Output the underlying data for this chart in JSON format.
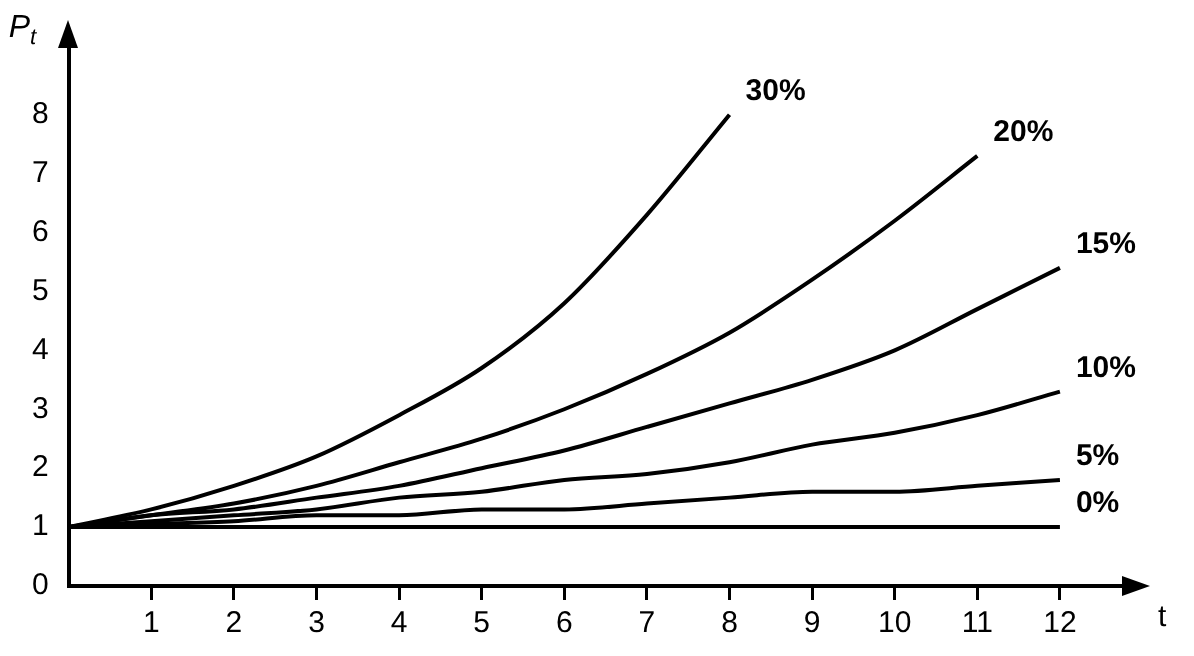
{
  "chart_data": {
    "type": "line",
    "xlabel": "t",
    "ylabel": "P$_{t}$",
    "xlim": [
      0,
      12.8
    ],
    "ylim": [
      0,
      9.2
    ],
    "xticks": [
      1,
      2,
      3,
      4,
      5,
      6,
      7,
      8,
      9,
      10,
      11,
      12
    ],
    "yticks": [
      0,
      1,
      2,
      3,
      4,
      5,
      6,
      7,
      8
    ],
    "grid": false,
    "legend": false,
    "line_style": "solid",
    "series": [
      {
        "name": "30%",
        "color": "#000000",
        "x": [
          0,
          1,
          2,
          3,
          4,
          5,
          6,
          7,
          8
        ],
        "values": [
          1,
          1.3,
          1.7,
          2.2,
          2.9,
          3.7,
          4.8,
          6.3,
          8.0
        ]
      },
      {
        "name": "20%",
        "color": "#000000",
        "x": [
          0,
          1,
          2,
          3,
          4,
          5,
          6,
          7,
          8,
          9,
          10,
          11
        ],
        "values": [
          1,
          1.2,
          1.4,
          1.7,
          2.1,
          2.5,
          3.0,
          3.6,
          4.3,
          5.2,
          6.2,
          7.3
        ]
      },
      {
        "name": "15%",
        "color": "#000000",
        "x": [
          0,
          1,
          2,
          3,
          4,
          5,
          6,
          7,
          8,
          9,
          10,
          11,
          12
        ],
        "values": [
          1,
          1.2,
          1.3,
          1.5,
          1.7,
          2.0,
          2.3,
          2.7,
          3.1,
          3.5,
          4.0,
          4.7,
          5.4
        ]
      },
      {
        "name": "10%",
        "color": "#000000",
        "x": [
          0,
          1,
          2,
          3,
          4,
          5,
          6,
          7,
          8,
          9,
          10,
          11,
          12
        ],
        "values": [
          1,
          1.1,
          1.2,
          1.3,
          1.5,
          1.6,
          1.8,
          1.9,
          2.1,
          2.4,
          2.6,
          2.9,
          3.3
        ]
      },
      {
        "name": "5%",
        "color": "#000000",
        "x": [
          0,
          1,
          2,
          3,
          4,
          5,
          6,
          7,
          8,
          9,
          10,
          11,
          12
        ],
        "values": [
          1,
          1.05,
          1.1,
          1.2,
          1.2,
          1.3,
          1.3,
          1.4,
          1.5,
          1.6,
          1.6,
          1.7,
          1.8
        ]
      },
      {
        "name": "0%",
        "color": "#000000",
        "x": [
          0,
          1,
          2,
          3,
          4,
          5,
          6,
          7,
          8,
          9,
          10,
          11,
          12
        ],
        "values": [
          1,
          1,
          1,
          1,
          1,
          1,
          1,
          1,
          1,
          1,
          1,
          1,
          1
        ]
      }
    ]
  }
}
